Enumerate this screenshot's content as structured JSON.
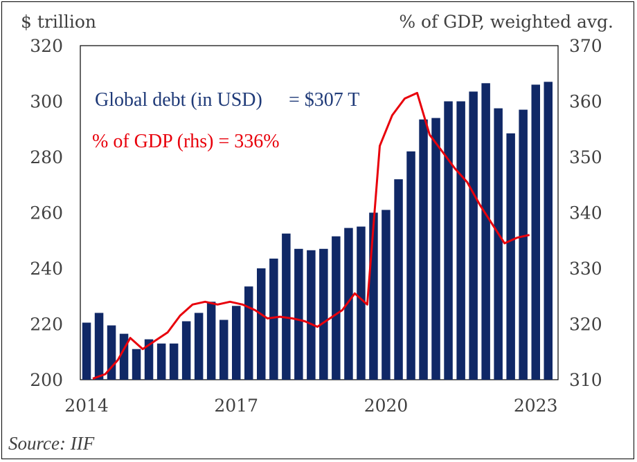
{
  "chart_data": {
    "type": "bar",
    "left_unit": "$ trillion",
    "right_unit": "% of GDP, weighted avg.",
    "source": "Source: IIF",
    "annotation_debt_label": "Global debt (in USD)",
    "annotation_debt_value": "= $307 T",
    "annotation_gdp": "% of GDP (rhs) = 336%",
    "x_tick_labels": [
      "2014",
      "2017",
      "2020",
      "2023"
    ],
    "x_tick_index": [
      0,
      12,
      24,
      36
    ],
    "y_left_ticks": [
      "200",
      "220",
      "240",
      "260",
      "280",
      "300",
      "320"
    ],
    "y_right_ticks": [
      "310",
      "320",
      "330",
      "340",
      "350",
      "360",
      "370"
    ],
    "y_left_range": [
      200,
      320
    ],
    "y_right_range": [
      310,
      370
    ],
    "colors": {
      "bars": "#102866",
      "line": "#e8000b"
    },
    "series": [
      {
        "name": "Global debt (in USD)",
        "axis": "left",
        "type": "bar",
        "values": [
          220.5,
          224,
          219.5,
          216.5,
          211,
          214.5,
          213,
          213,
          221,
          224,
          228,
          221.5,
          226.5,
          233.5,
          240,
          243.5,
          252.5,
          247,
          246.5,
          247,
          251.5,
          254.5,
          255,
          260,
          261,
          272,
          282,
          293.5,
          294,
          300,
          300,
          303.5,
          306.5,
          297.5,
          288.5,
          297,
          306,
          307
        ]
      },
      {
        "name": "% of GDP (rhs)",
        "axis": "right",
        "type": "line",
        "values": [
          310.2,
          311,
          313.5,
          317.5,
          315.5,
          317,
          318.5,
          321.5,
          323.5,
          324,
          323.5,
          324,
          323.5,
          322.5,
          321,
          321.3,
          321,
          320.5,
          319.5,
          321,
          322.5,
          325.5,
          323.5,
          352,
          357.5,
          360.5,
          361.5,
          354,
          351,
          348,
          345.5,
          341.5,
          338,
          334.5,
          335.5,
          336
        ]
      }
    ]
  }
}
